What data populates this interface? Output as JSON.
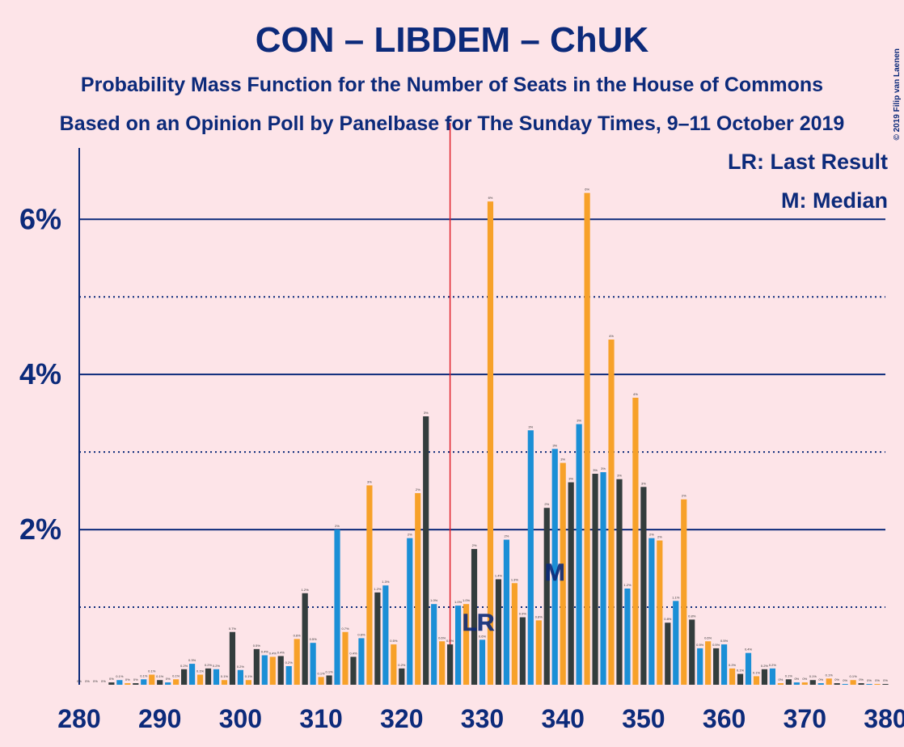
{
  "chart_data": {
    "type": "bar",
    "title": "CON – LIBDEM – ChUK",
    "subtitle": "Probability Mass Function for the Number of Seats in the House of Commons",
    "subtitle2": "Based on an Opinion Poll by Panelbase for The Sunday Times, 9–11 October 2019",
    "copyright": "© 2019 Filip van Laenen",
    "legend": [
      "LR: Last Result",
      "M: Median"
    ],
    "legend_position": "upper right",
    "last_result": {
      "x": 326,
      "label": "LR",
      "color": "#e0202a"
    },
    "median": {
      "x": 339,
      "label": "M"
    },
    "colors": [
      "#f7a129",
      "#333d3d",
      "#1b8fd6"
    ],
    "x": [
      280,
      281,
      282,
      283,
      284,
      285,
      286,
      287,
      288,
      289,
      290,
      291,
      292,
      293,
      294,
      295,
      296,
      297,
      298,
      299,
      300,
      301,
      302,
      303,
      304,
      305,
      306,
      307,
      308,
      309,
      310,
      311,
      312,
      313,
      314,
      315,
      316,
      317,
      318,
      319,
      320,
      321,
      322,
      323,
      324,
      325,
      326,
      327,
      328,
      329,
      330,
      331,
      332,
      333,
      334,
      335,
      336,
      337,
      338,
      339,
      340,
      341,
      342,
      343,
      344,
      345,
      346,
      347,
      348,
      349,
      350,
      351,
      352,
      353,
      354,
      355,
      356,
      357,
      358,
      359,
      360,
      361,
      362,
      363,
      364,
      365,
      366,
      367,
      368,
      369,
      370,
      371,
      372,
      373,
      374,
      375,
      376,
      377,
      378,
      379,
      380
    ],
    "values": [
      0,
      0,
      0,
      0,
      0.03,
      0.06,
      0.02,
      0.02,
      0.07,
      0.13,
      0.06,
      0.03,
      0.07,
      0.2,
      0.27,
      0.13,
      0.21,
      0.2,
      0.06,
      0.68,
      0.19,
      0.06,
      0.46,
      0.38,
      0.36,
      0.37,
      0.24,
      0.59,
      1.18,
      0.54,
      0.1,
      0.12,
      2.0,
      0.68,
      0.36,
      0.6,
      2.57,
      1.19,
      1.28,
      0.52,
      0.21,
      1.89,
      2.47,
      3.46,
      1.04,
      0.56,
      0.52,
      1.02,
      1.04,
      1.75,
      0.58,
      6.23,
      1.36,
      1.87,
      1.31,
      0.87,
      3.28,
      0.83,
      2.28,
      3.04,
      2.86,
      2.61,
      3.36,
      6.34,
      2.72,
      2.74,
      4.45,
      2.65,
      1.24,
      3.7,
      2.55,
      1.89,
      1.86,
      0.8,
      1.08,
      2.39,
      0.84,
      0.47,
      0.56,
      0.47,
      0.52,
      0.21,
      0.14,
      0.41,
      0.11,
      0.2,
      0.21,
      0.02,
      0.07,
      0.03,
      0.03,
      0.06,
      0.02,
      0.08,
      0.02,
      0.01,
      0.06,
      0.02,
      0.01,
      0.01,
      0.01
    ],
    "value_labels": [
      "0%",
      "0%",
      "0%",
      "0%",
      "0%",
      "0.1%",
      "0%",
      "0%",
      "0.1%",
      "0.1%",
      "0.1%",
      "0%",
      "0.1%",
      "0.2%",
      "0.3%",
      "0.1%",
      "0.2%",
      "0.2%",
      "0.1%",
      "0.7%",
      "0.2%",
      "0.1%",
      "0.5%",
      "0.4%",
      "0.4%",
      "0.4%",
      "0.2%",
      "0.6%",
      "1.2%",
      "0.5%",
      "0.1%",
      "0.1%",
      "2%",
      "0.7%",
      "0.4%",
      "0.6%",
      "3%",
      "1.2%",
      "1.3%",
      "0.5%",
      "0.2%",
      "2%",
      "2%",
      "3%",
      "1.0%",
      "0.6%",
      "0.5%",
      "1.0%",
      "1.0%",
      "2%",
      "0.6%",
      "6%",
      "1.4%",
      "2%",
      "1.3%",
      "0.9%",
      "3%",
      "0.8%",
      "2%",
      "3%",
      "3%",
      "3%",
      "3%",
      "6%",
      "3%",
      "3%",
      "4%",
      "3%",
      "1.2%",
      "4%",
      "3%",
      "2%",
      "2%",
      "0.8%",
      "1.1%",
      "2%",
      "0.8%",
      "0.5%",
      "0.6%",
      "0.5%",
      "0.5%",
      "0.2%",
      "0.1%",
      "0.4%",
      "0.1%",
      "0.2%",
      "0.2%",
      "0%",
      "0.1%",
      "0%",
      "0%",
      "0.1%",
      "0%",
      "0.1%",
      "0%",
      "0%",
      "0.1%",
      "0%",
      "0%",
      "0%",
      "0%"
    ],
    "xlim": [
      280,
      380
    ],
    "xticks": [
      280,
      290,
      300,
      310,
      320,
      330,
      340,
      350,
      360,
      370,
      380
    ],
    "ylim": [
      0,
      6.92
    ],
    "yticks": [
      {
        "value": 2,
        "label": "2%"
      },
      {
        "value": 4,
        "label": "4%"
      },
      {
        "value": 6,
        "label": "6%"
      }
    ],
    "minor_yticks": [
      1,
      3,
      5
    ],
    "grid": true
  }
}
